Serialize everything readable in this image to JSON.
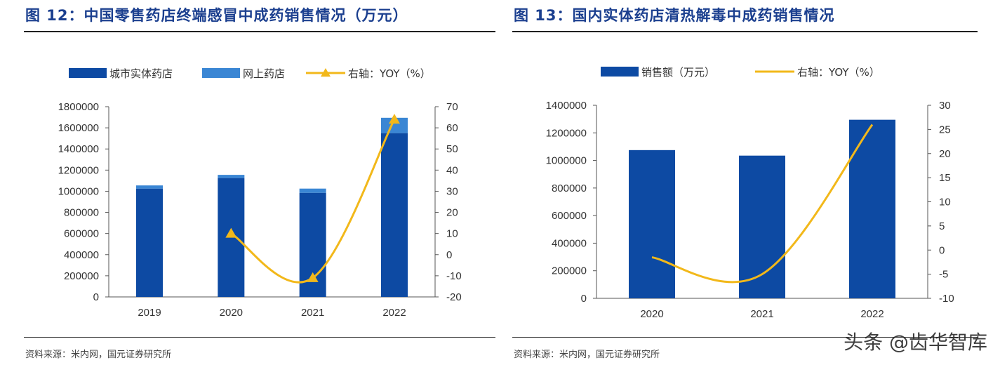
{
  "figures": {
    "left_title": "图 12：中国零售药店终端感冒中成药销售情况（万元）",
    "right_title": "图 13：国内实体药店清热解毒中成药销售情况",
    "left_source": "资料来源：米内网，国元证券研究所",
    "right_source": "资料来源：米内网，国元证券研究所"
  },
  "watermark": "头条 @齿华智库",
  "colors": {
    "dark_blue": "#0d4aa3",
    "light_blue": "#3a86d4",
    "line_yellow": "#f2b81a",
    "title_blue": "#1b3f8f"
  },
  "chart_data": [
    {
      "type": "bar",
      "stacked": true,
      "title": "图 12：中国零售药店终端感冒中成药销售情况（万元）",
      "categories": [
        "2019",
        "2020",
        "2021",
        "2022"
      ],
      "series": [
        {
          "name": "城市实体药店",
          "axis": "left",
          "values": [
            1025000,
            1125000,
            985000,
            1550000
          ]
        },
        {
          "name": "网上药店",
          "axis": "left",
          "values": [
            30000,
            30000,
            40000,
            145000
          ]
        },
        {
          "name": "右轴：YOY（%）",
          "type": "line",
          "marker": "triangle",
          "axis": "right",
          "values": [
            null,
            10,
            -11,
            64
          ]
        }
      ],
      "ylim": [
        0,
        1800000
      ],
      "yticks": [
        "0",
        "200000",
        "400000",
        "600000",
        "800000",
        "1000000",
        "1200000",
        "1400000",
        "1600000",
        "1800000"
      ],
      "y2lim": [
        -20,
        70
      ],
      "y2ticks": [
        "-20",
        "-10",
        "0",
        "10",
        "20",
        "30",
        "40",
        "50",
        "60",
        "70"
      ],
      "legend": "top"
    },
    {
      "type": "bar",
      "title": "图 13：国内实体药店清热解毒中成药销售情况",
      "categories": [
        "2020",
        "2021",
        "2022"
      ],
      "series": [
        {
          "name": "销售额（万元）",
          "axis": "left",
          "values": [
            1075000,
            1035000,
            1295000
          ]
        },
        {
          "name": "右轴：YOY（%）",
          "type": "line",
          "axis": "right",
          "values": [
            -1.5,
            -5,
            26
          ]
        }
      ],
      "ylim": [
        0,
        1400000
      ],
      "yticks": [
        "0",
        "200000",
        "400000",
        "600000",
        "800000",
        "1000000",
        "1200000",
        "1400000"
      ],
      "y2lim": [
        -10,
        30
      ],
      "y2ticks": [
        "-10",
        "-5",
        "0",
        "5",
        "10",
        "15",
        "20",
        "25",
        "30"
      ],
      "legend": "top"
    }
  ]
}
